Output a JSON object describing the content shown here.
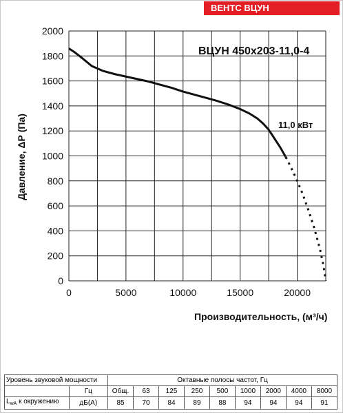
{
  "brand": "ВЕНТС ВЦУН",
  "chart_data": {
    "type": "line",
    "title": "ВЦУН 450x203-11,0-4",
    "xlabel": "Производительность, (м³/ч)",
    "ylabel": "Давление, ΔР (Па)",
    "xlim": [
      0,
      22500
    ],
    "ylim": [
      0,
      2000
    ],
    "x_ticks": [
      "0",
      "5000",
      "10000",
      "15000",
      "20000"
    ],
    "y_ticks": [
      "0",
      "200",
      "400",
      "600",
      "800",
      "1000",
      "1200",
      "1400",
      "1600",
      "1800",
      "2000"
    ],
    "grid": true,
    "series": [
      {
        "name": "11,0 кВт",
        "solid": {
          "x": [
            0,
            500,
            1200,
            2000,
            3000,
            4000,
            5000,
            6000,
            7000,
            8000,
            9000,
            10000,
            11000,
            12000,
            13000,
            14000,
            15000,
            15800,
            16500,
            17000,
            17500,
            18000,
            18500,
            19000
          ],
          "y": [
            1860,
            1830,
            1780,
            1720,
            1680,
            1655,
            1635,
            1615,
            1595,
            1570,
            1545,
            1515,
            1490,
            1465,
            1440,
            1410,
            1375,
            1340,
            1300,
            1260,
            1210,
            1140,
            1070,
            990
          ]
        },
        "dotted": {
          "x": [
            19000,
            19500,
            20000,
            20500,
            21000,
            21500,
            22000,
            22300,
            22500
          ],
          "y": [
            990,
            900,
            800,
            690,
            560,
            420,
            250,
            120,
            0
          ]
        }
      }
    ]
  },
  "sound_table": {
    "header_left": "Уровень звуковой мощности",
    "header_right": "Октавные полосы частот, Гц",
    "unit_hz": "Гц",
    "columns": [
      "Общ.",
      "63",
      "125",
      "250",
      "500",
      "1000",
      "2000",
      "4000",
      "8000"
    ],
    "row_label_prefix": "L",
    "row_label_sub": "wA",
    "row_label_suffix": " к окружению",
    "row_unit": "дБ(А)",
    "values": [
      "85",
      "70",
      "84",
      "89",
      "88",
      "94",
      "94",
      "94",
      "91"
    ]
  }
}
